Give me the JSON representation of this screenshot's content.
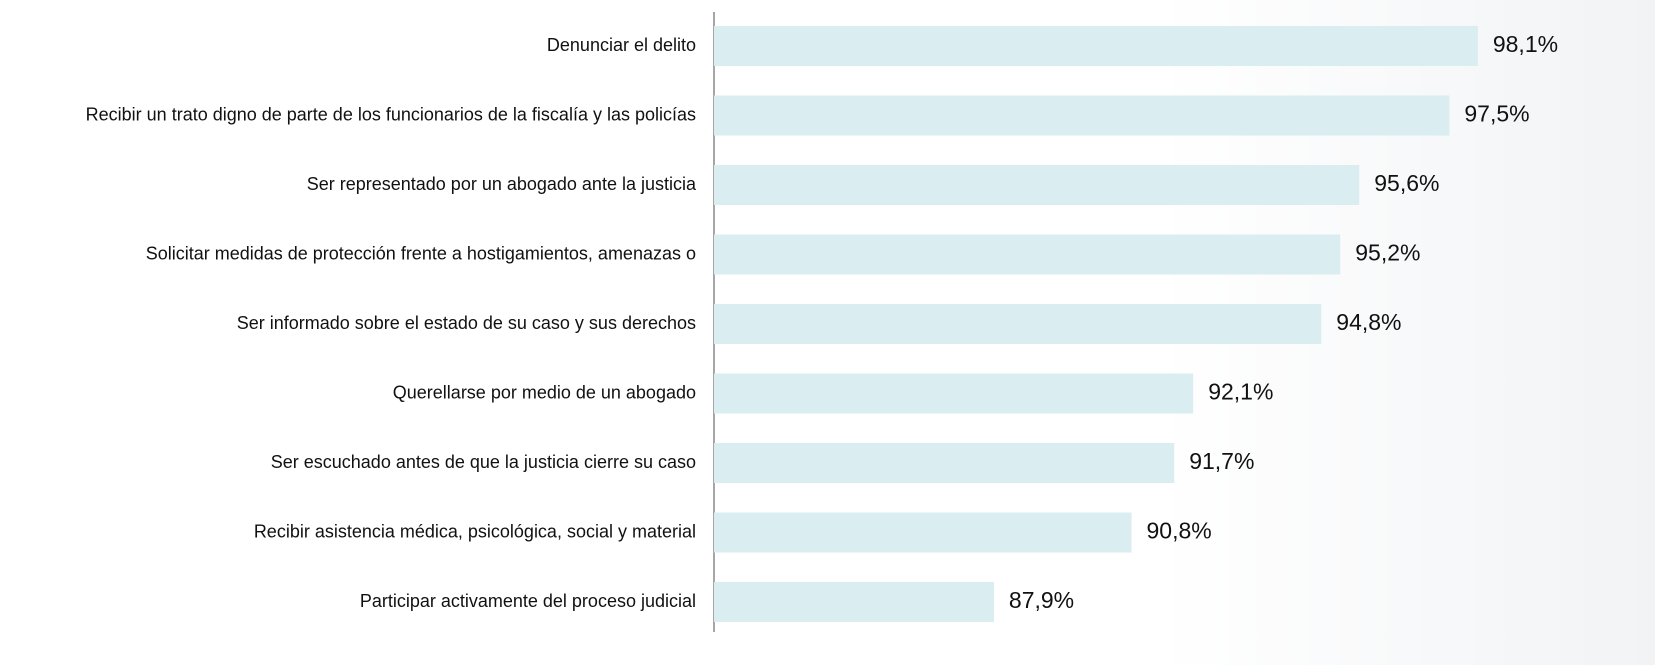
{
  "chart_data": {
    "type": "barh",
    "categories": [
      "Denunciar el delito",
      "Recibir un trato digno de parte de los funcionarios de la fiscalía y las policías",
      "Ser representado por un abogado ante la justicia",
      "Solicitar medidas de protección frente a hostigamientos, amenazas o",
      "Ser informado sobre el estado de su caso y sus derechos",
      "Querellarse por medio de un abogado",
      "Ser escuchado antes de que la justicia cierre su caso",
      "Recibir asistencia médica, psicológica, social y material",
      "Participar activamente del proceso judicial"
    ],
    "values": [
      98.1,
      97.5,
      95.6,
      95.2,
      94.8,
      92.1,
      91.7,
      90.8,
      87.9
    ],
    "value_labels": [
      "98,1%",
      "97,5%",
      "95,6%",
      "95,2%",
      "94,8%",
      "92,1%",
      "91,7%",
      "90,8%",
      "87,9%"
    ],
    "color": "#daedf0",
    "xlim": [
      82,
      100
    ]
  }
}
